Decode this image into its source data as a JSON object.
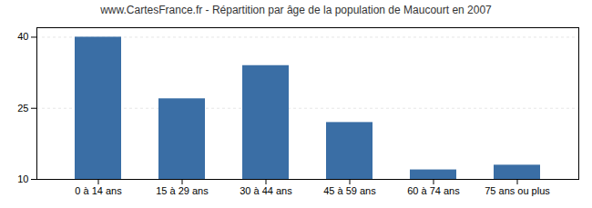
{
  "chart_data": {
    "type": "bar",
    "title": "www.CartesFrance.fr - Répartition par âge de la population de Maucourt en 2007",
    "categories": [
      "0 à 14 ans",
      "15 à 29 ans",
      "30 à 44 ans",
      "45 à 59 ans",
      "60 à 74 ans",
      "75 ans ou plus"
    ],
    "values": [
      40,
      27,
      34,
      22,
      12,
      13
    ],
    "color": "#3a6ea5",
    "ylim": [
      10,
      42
    ],
    "yticks": [
      10,
      25,
      40
    ],
    "grid": true
  }
}
